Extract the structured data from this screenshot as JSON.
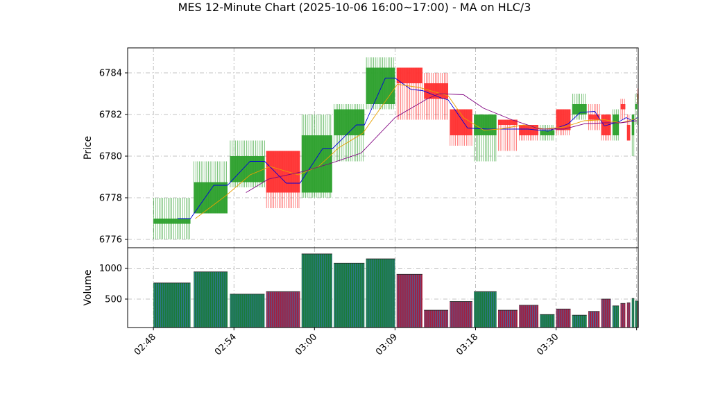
{
  "chart_data": {
    "type": "candlestick",
    "title": "MES 12-Minute Chart (2025-10-06 16:00~17:00) - MA on HLC/3",
    "price_panel": {
      "ylabel": "Price",
      "ylim": [
        6775.6,
        6785.2
      ],
      "yticks": [
        6776,
        6778,
        6780,
        6782,
        6784
      ]
    },
    "volume_panel": {
      "ylabel": "Volume",
      "ylim": [
        40,
        1330
      ],
      "yticks": [
        500,
        1000
      ]
    },
    "xlim": [
      -3.2,
      60.2
    ],
    "xticks": [
      {
        "x": 0,
        "label": "02:48"
      },
      {
        "x": 10,
        "label": "02:54"
      },
      {
        "x": 20,
        "label": "03:00"
      },
      {
        "x": 30,
        "label": "03:09"
      },
      {
        "x": 40,
        "label": "03:18"
      },
      {
        "x": 50,
        "label": "03:30"
      },
      {
        "x": 60,
        "label": ""
      }
    ],
    "colors": {
      "up": "#2ca02c",
      "down": "#ff3030",
      "volume_up": "#1a7a3a",
      "volume_down": "#a02040",
      "volume_stripe": "#3a78b8",
      "ma_fast": "#0000dd",
      "ma_mid": "#e8a000",
      "ma_slow": "#800080",
      "grid": "#b0b0b0"
    },
    "bars": [
      {
        "s": 0,
        "e": 4.6,
        "o": 6776.75,
        "h": 6778,
        "l": 6776,
        "c": 6777,
        "v": 760
      },
      {
        "s": 5,
        "e": 9.2,
        "o": 6777.25,
        "h": 6779.75,
        "l": 6777.25,
        "c": 6778.75,
        "v": 940
      },
      {
        "s": 9.5,
        "e": 13.8,
        "o": 6778.75,
        "h": 6780.75,
        "l": 6778.5,
        "c": 6780,
        "v": 580
      },
      {
        "s": 14,
        "e": 18.2,
        "o": 6780.25,
        "h": 6780.25,
        "l": 6777.5,
        "c": 6778.25,
        "v": 620
      },
      {
        "s": 18.4,
        "e": 22.2,
        "o": 6778.25,
        "h": 6782,
        "l": 6778,
        "c": 6781,
        "v": 1230
      },
      {
        "s": 22.4,
        "e": 26.2,
        "o": 6781,
        "h": 6782.5,
        "l": 6779.75,
        "c": 6782.25,
        "v": 1080
      },
      {
        "s": 26.4,
        "e": 30,
        "o": 6782.5,
        "h": 6784.75,
        "l": 6782.25,
        "c": 6784.25,
        "v": 1150
      },
      {
        "s": 30.2,
        "e": 33.4,
        "o": 6784.25,
        "h": 6784.25,
        "l": 6781.75,
        "c": 6783.5,
        "v": 900
      },
      {
        "s": 33.6,
        "e": 36.6,
        "o": 6783.5,
        "h": 6784,
        "l": 6781.75,
        "c": 6782.75,
        "v": 320
      },
      {
        "s": 36.8,
        "e": 39.6,
        "o": 6782.25,
        "h": 6782.25,
        "l": 6780.5,
        "c": 6781,
        "v": 460
      },
      {
        "s": 39.8,
        "e": 42.6,
        "o": 6781,
        "h": 6782,
        "l": 6779.75,
        "c": 6782,
        "v": 620
      },
      {
        "s": 42.8,
        "e": 45.2,
        "o": 6781.75,
        "h": 6781.75,
        "l": 6780.25,
        "c": 6781.5,
        "v": 320
      },
      {
        "s": 45.4,
        "e": 47.8,
        "o": 6781.5,
        "h": 6781.5,
        "l": 6780.75,
        "c": 6781,
        "v": 400
      },
      {
        "s": 48,
        "e": 49.8,
        "o": 6781,
        "h": 6781.5,
        "l": 6780.75,
        "c": 6781.25,
        "v": 250
      },
      {
        "s": 50,
        "e": 51.8,
        "o": 6782.25,
        "h": 6782.25,
        "l": 6781,
        "c": 6781.25,
        "v": 340
      },
      {
        "s": 52,
        "e": 53.8,
        "o": 6782,
        "h": 6783,
        "l": 6781.75,
        "c": 6782.5,
        "v": 240
      },
      {
        "s": 54,
        "e": 55.4,
        "o": 6782,
        "h": 6782.5,
        "l": 6781.25,
        "c": 6781.75,
        "v": 300
      },
      {
        "s": 55.6,
        "e": 56.8,
        "o": 6782,
        "h": 6782,
        "l": 6780.75,
        "c": 6781,
        "v": 500
      },
      {
        "s": 57,
        "e": 57.8,
        "o": 6781,
        "h": 6782.25,
        "l": 6780.75,
        "c": 6782,
        "v": 390
      },
      {
        "s": 58,
        "e": 58.6,
        "o": 6782.5,
        "h": 6782.75,
        "l": 6781.75,
        "c": 6782.25,
        "v": 430
      },
      {
        "s": 58.8,
        "e": 59.2,
        "o": 6781.5,
        "h": 6782,
        "l": 6780.75,
        "c": 6780.75,
        "v": 440
      },
      {
        "s": 59.4,
        "e": 59.7,
        "o": 6781,
        "h": 6782,
        "l": 6780,
        "c": 6782,
        "v": 510
      },
      {
        "s": 59.8,
        "e": 60.1,
        "o": 6782.25,
        "h": 6783,
        "l": 6781.5,
        "c": 6782.5,
        "v": 470
      },
      {
        "s": 60.1,
        "e": 60.25,
        "o": 6783,
        "h": 6783.25,
        "l": 6782.5,
        "c": 6782.75,
        "v": 460
      }
    ],
    "ma_series": [
      {
        "key": "ma_fast",
        "points": [
          [
            3,
            6777
          ],
          [
            4.6,
            6777
          ],
          [
            7.5,
            6778.6
          ],
          [
            9.2,
            6778.6
          ],
          [
            12,
            6779.75
          ],
          [
            13.8,
            6779.75
          ],
          [
            16.5,
            6778.7
          ],
          [
            18.2,
            6778.7
          ],
          [
            21,
            6780.35
          ],
          [
            22.2,
            6780.35
          ],
          [
            25.2,
            6781.5
          ],
          [
            26.2,
            6781.5
          ],
          [
            28.8,
            6783.75
          ],
          [
            30,
            6783.75
          ],
          [
            32,
            6783.2
          ],
          [
            33.4,
            6783.15
          ],
          [
            35.7,
            6782.8
          ],
          [
            36.6,
            6782.7
          ],
          [
            39,
            6781.35
          ],
          [
            41.5,
            6781.3
          ],
          [
            44,
            6781.3
          ],
          [
            46.5,
            6781.3
          ],
          [
            49,
            6781.2
          ],
          [
            51.5,
            6781.55
          ],
          [
            53,
            6782.1
          ],
          [
            54.8,
            6782.15
          ],
          [
            56,
            6781.45
          ],
          [
            57.8,
            6781.65
          ],
          [
            58.7,
            6781.85
          ],
          [
            59.5,
            6781.7
          ],
          [
            60.1,
            6781.85
          ]
        ]
      },
      {
        "key": "ma_mid",
        "points": [
          [
            5.2,
            6777
          ],
          [
            9,
            6778.1
          ],
          [
            12,
            6779.1
          ],
          [
            14.5,
            6779.5
          ],
          [
            18,
            6779.1
          ],
          [
            20.5,
            6779.5
          ],
          [
            23,
            6780.4
          ],
          [
            26,
            6781.1
          ],
          [
            28,
            6782.2
          ],
          [
            30.3,
            6783.45
          ],
          [
            33,
            6783.3
          ],
          [
            36.6,
            6782.9
          ],
          [
            38.5,
            6781.85
          ],
          [
            41,
            6781.25
          ],
          [
            43,
            6781.3
          ],
          [
            46,
            6781.5
          ],
          [
            48.5,
            6781.3
          ],
          [
            51,
            6781.4
          ],
          [
            53.5,
            6781.7
          ],
          [
            56,
            6781.75
          ],
          [
            58,
            6781.6
          ],
          [
            60,
            6781.8
          ]
        ]
      },
      {
        "key": "ma_slow",
        "points": [
          [
            11.5,
            6778.25
          ],
          [
            14.3,
            6778.9
          ],
          [
            18.5,
            6779.25
          ],
          [
            22,
            6779.65
          ],
          [
            25.8,
            6780.15
          ],
          [
            30,
            6781.85
          ],
          [
            34,
            6782.75
          ],
          [
            35.5,
            6783
          ],
          [
            38.5,
            6782.95
          ],
          [
            41,
            6782.3
          ],
          [
            44.5,
            6781.75
          ],
          [
            48,
            6781.3
          ],
          [
            51,
            6781.3
          ],
          [
            53.5,
            6781.55
          ],
          [
            56,
            6781.6
          ],
          [
            58,
            6781.6
          ],
          [
            60,
            6781.7
          ]
        ]
      }
    ]
  }
}
